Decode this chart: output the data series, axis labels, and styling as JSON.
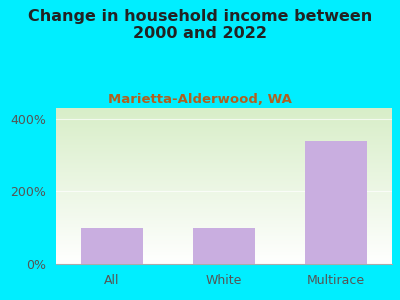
{
  "title": "Change in household income between\n2000 and 2022",
  "subtitle": "Marietta-Alderwood, WA",
  "categories": [
    "All",
    "White",
    "Multirace"
  ],
  "values": [
    100,
    100,
    340
  ],
  "bar_color": "#c9aee0",
  "title_fontsize": 11.5,
  "subtitle_fontsize": 9.5,
  "subtitle_color": "#b06020",
  "title_color": "#222222",
  "background_color": "#00eeff",
  "plot_bg_topleft": "#d8eec8",
  "plot_bg_bottomright": "#ffffff",
  "yticks": [
    0,
    200,
    400
  ],
  "yticklabels": [
    "0%",
    "200%",
    "400%"
  ],
  "ylim": [
    0,
    430
  ],
  "tick_label_fontsize": 9,
  "bar_width": 0.55
}
